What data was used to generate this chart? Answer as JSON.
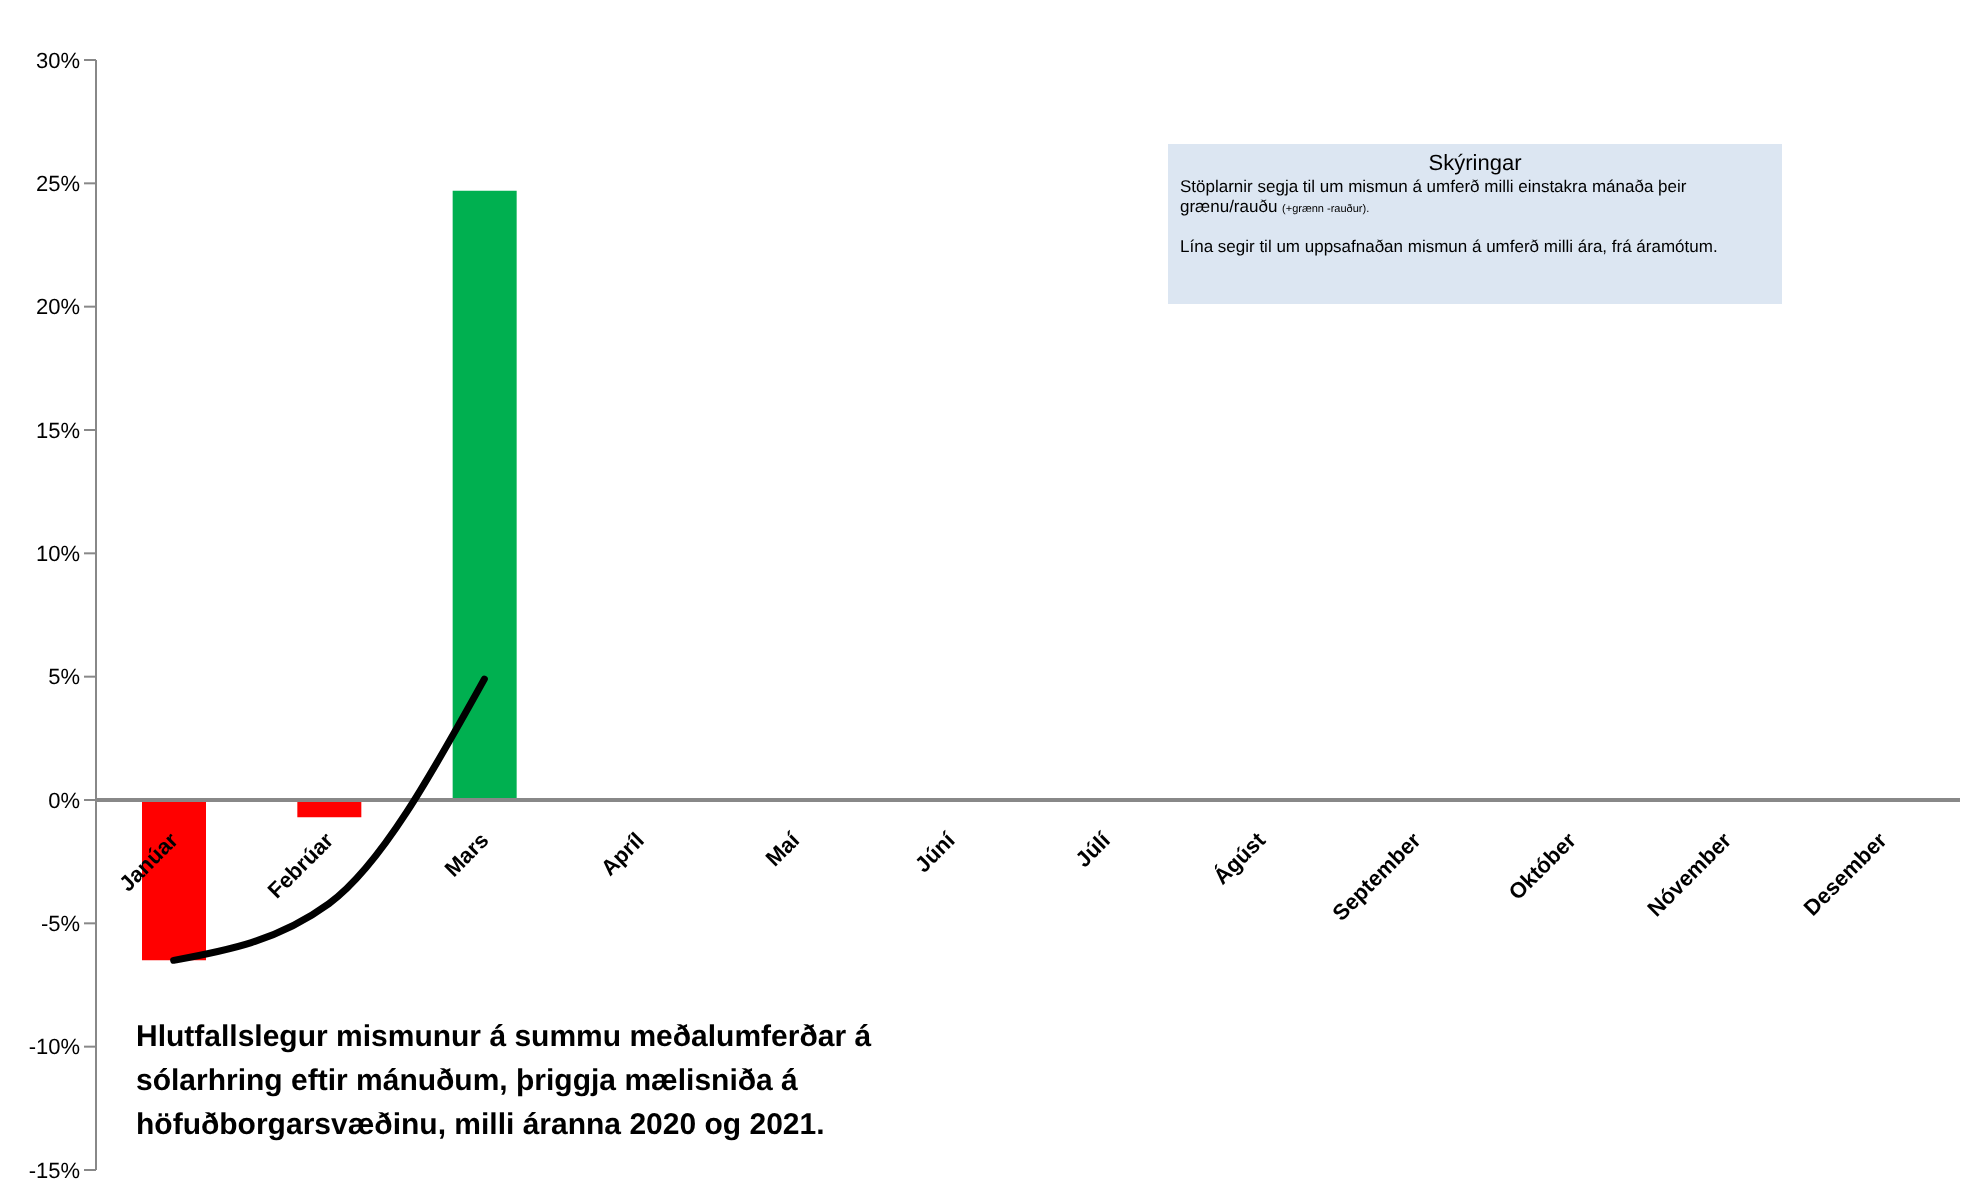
{
  "chart_data": {
    "type": "bar",
    "title": "Hlutfallslegur mismunur á summu meðalumferðar á sólarhring eftir mánuðum, þriggja mælisniða á höfuðborgarsvæðinu, milli áranna 2020 og 2021.",
    "annotations": [
      "Skýringar",
      "Stöplarnir segja til um mismun á umferð milli einstakra mánaða  þeir grænu/rauðu",
      "(+grænn -rauður).",
      "Lína segir til um uppsafnaðan mismun á umferð milli ára, frá áramótum."
    ],
    "categories": [
      "Janúar",
      "Febrúar",
      "Mars",
      "Apríl",
      "Maí",
      "Júní",
      "Júlí",
      "Ágúst",
      "September",
      "Október",
      "Nóvember",
      "Desember"
    ],
    "series": [
      {
        "colors": [
          "#ff0000",
          "#ff0000",
          "#00b050",
          null,
          null,
          null,
          null,
          null,
          null,
          null,
          null,
          null
        ],
        "values": [
          -6.5,
          -0.7,
          24.7,
          null,
          null,
          null,
          null,
          null,
          null,
          null,
          null,
          null
        ]
      },
      {
        "type": "line",
        "color": "#000000",
        "values": [
          -6.5,
          -4.2,
          4.9,
          null,
          null,
          null,
          null,
          null,
          null,
          null,
          null,
          null
        ]
      }
    ],
    "ylim": [
      -15,
      30
    ],
    "yticks": [
      {
        "value": -15,
        "label": "-15%"
      },
      {
        "value": -10,
        "label": "-10%"
      },
      {
        "value": -5,
        "label": "-5%"
      },
      {
        "value": 0,
        "label": "0%"
      },
      {
        "value": 5,
        "label": "5%"
      },
      {
        "value": 10,
        "label": "10%"
      },
      {
        "value": 15,
        "label": "15%"
      },
      {
        "value": 20,
        "label": "20%"
      },
      {
        "value": 25,
        "label": "25%"
      },
      {
        "value": 30,
        "label": "30%"
      }
    ],
    "marker": "none",
    "line_style": "solid"
  }
}
